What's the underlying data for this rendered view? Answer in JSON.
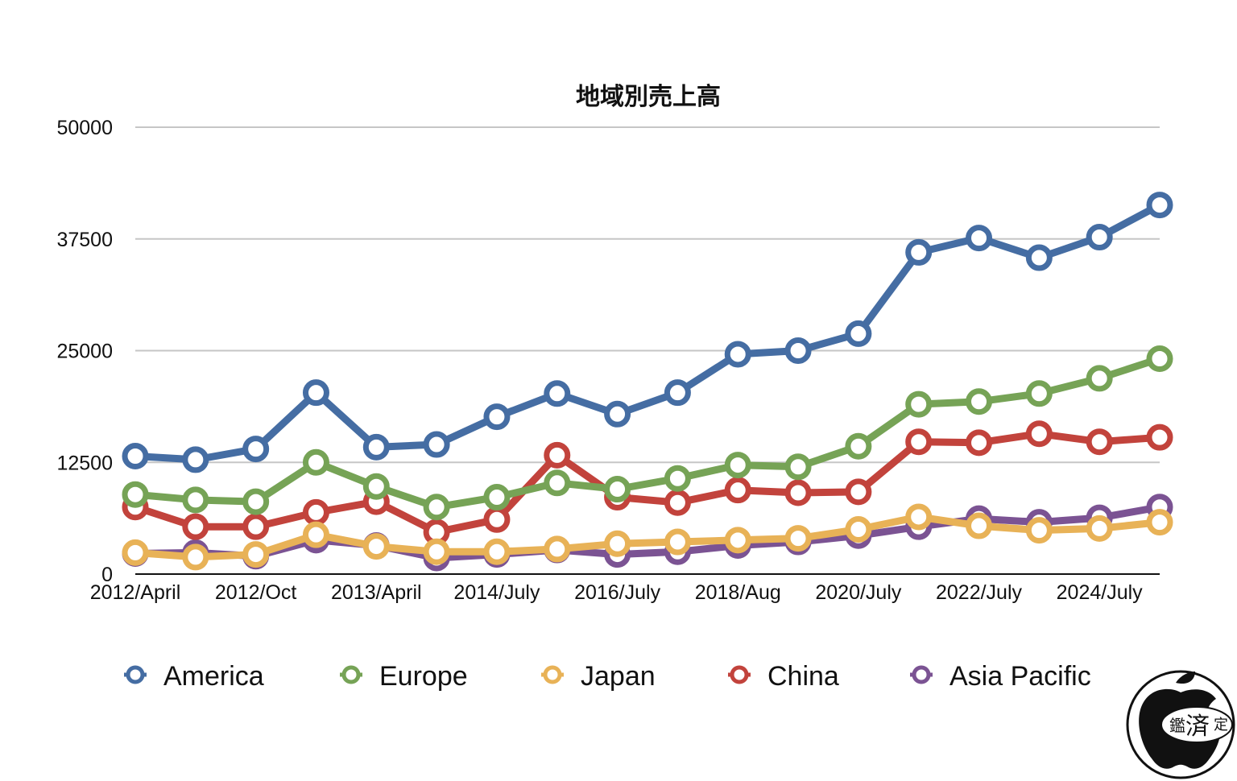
{
  "chart_data": {
    "type": "line",
    "title": "地域別売上高",
    "xlabel": "",
    "ylabel": "",
    "ylim": [
      0,
      50000
    ],
    "yticks": [
      "0",
      "12500",
      "25000",
      "37500",
      "50000"
    ],
    "grid": true,
    "legend_position": "bottom",
    "x_tick_labels": [
      {
        "index": 0,
        "label": "2012/April"
      },
      {
        "index": 2,
        "label": "2012/Oct"
      },
      {
        "index": 4,
        "label": "2013/April"
      },
      {
        "index": 6,
        "label": "2014/July"
      },
      {
        "index": 8,
        "label": "2016/July"
      },
      {
        "index": 10,
        "label": "2018/Aug"
      },
      {
        "index": 12,
        "label": "2020/July"
      },
      {
        "index": 14,
        "label": "2022/July"
      },
      {
        "index": 16,
        "label": "2024/July"
      }
    ],
    "point_count": 18,
    "series": [
      {
        "name": "Asia Pacific",
        "color": "#7b5393",
        "values": [
          2300,
          2400,
          2000,
          3800,
          3200,
          1800,
          2200,
          2700,
          2200,
          2500,
          3200,
          3600,
          4300,
          5300,
          6200,
          5800,
          6300,
          7500
        ]
      },
      {
        "name": "China",
        "color": "#c2433c",
        "values": [
          7500,
          5300,
          5300,
          6900,
          8100,
          4700,
          6100,
          13300,
          8600,
          8000,
          9400,
          9100,
          9200,
          14800,
          14700,
          15700,
          14800,
          15300
        ]
      },
      {
        "name": "Japan",
        "color": "#e8b257",
        "values": [
          2400,
          1900,
          2200,
          4400,
          3100,
          2500,
          2500,
          2800,
          3400,
          3600,
          3800,
          4000,
          5000,
          6400,
          5400,
          4900,
          5100,
          5800
        ]
      },
      {
        "name": "Europe",
        "color": "#76a356",
        "values": [
          8900,
          8300,
          8100,
          12500,
          9800,
          7500,
          8600,
          10200,
          9500,
          10700,
          12200,
          12000,
          14300,
          19000,
          19300,
          20200,
          21900,
          24100
        ]
      },
      {
        "name": "America",
        "color": "#456da3",
        "values": [
          13200,
          12800,
          14000,
          20300,
          14200,
          14500,
          17600,
          20200,
          17900,
          20300,
          24600,
          25000,
          26900,
          36000,
          37600,
          35400,
          37700,
          41300
        ]
      }
    ],
    "legend": [
      {
        "name": "America",
        "color": "#456da3"
      },
      {
        "name": "Europe",
        "color": "#76a356"
      },
      {
        "name": "Japan",
        "color": "#e8b257"
      },
      {
        "name": "China",
        "color": "#c2433c"
      },
      {
        "name": "Asia Pacific",
        "color": "#7b5393"
      }
    ]
  },
  "watermark": {
    "icon": "apple-logo-icon",
    "text_left": "鑑",
    "text_center": "済",
    "text_right": "定"
  }
}
